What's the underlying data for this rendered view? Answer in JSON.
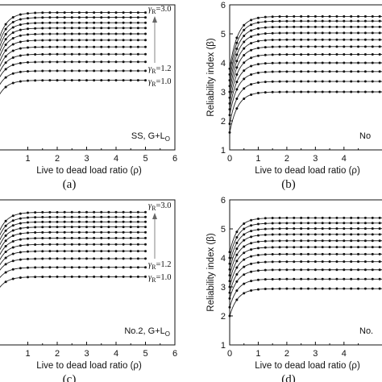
{
  "chart_data": [
    {
      "id": "a",
      "type": "line",
      "panel_label": "(a)",
      "xlabel": "Live to dead load ratio (ρ)",
      "ylabel": "",
      "xlim": [
        0,
        6
      ],
      "xticks": [
        "1",
        "2",
        "3",
        "4",
        "5",
        "6"
      ],
      "ylim": [
        0,
        6
      ],
      "yticks": [],
      "series_count": 11,
      "case_text": "SS, G+L",
      "case_subscript": "O",
      "annotations": {
        "top": {
          "text": "γ",
          "sub": "R",
          "value": "=3.0"
        },
        "mid": {
          "text": "γ",
          "sub": "R",
          "value": "=1.2"
        },
        "low": {
          "text": "γ",
          "sub": "R",
          "value": "=1.0"
        }
      },
      "series": [
        {
          "values": [
            4.5,
            5.62,
            5.67,
            5.68
          ]
        },
        {
          "values": [
            4.3,
            5.42,
            5.47,
            5.48
          ]
        },
        {
          "values": [
            4.1,
            5.2,
            5.25,
            5.26
          ]
        },
        {
          "values": [
            3.9,
            4.98,
            5.03,
            5.04
          ]
        },
        {
          "values": [
            3.7,
            4.74,
            4.79,
            4.8
          ]
        },
        {
          "values": [
            3.5,
            4.48,
            4.53,
            4.54
          ]
        },
        {
          "values": [
            3.3,
            4.2,
            4.25,
            4.26
          ]
        },
        {
          "values": [
            3.1,
            3.9,
            3.95,
            3.96
          ]
        },
        {
          "values": [
            2.9,
            3.58,
            3.63,
            3.64
          ]
        },
        {
          "values": [
            2.6,
            3.2,
            3.26,
            3.27
          ]
        },
        {
          "values": [
            2.2,
            2.8,
            2.87,
            2.88
          ]
        }
      ]
    },
    {
      "id": "b",
      "type": "line",
      "panel_label": "(b)",
      "xlabel": "Live to dead load ratio (ρ)",
      "ylabel": "Reliability index (β)",
      "xlim": [
        0,
        5.5
      ],
      "xticks": [
        "0",
        "1",
        "2",
        "3",
        "4"
      ],
      "ylim": [
        1,
        6
      ],
      "yticks": [
        "1",
        "2",
        "3",
        "4",
        "5",
        "6"
      ],
      "case_text": "No",
      "series": [
        {
          "values": [
            3.8,
            5.5,
            5.58,
            5.6
          ]
        },
        {
          "values": [
            3.6,
            5.35,
            5.42,
            5.44
          ]
        },
        {
          "values": [
            3.4,
            5.15,
            5.22,
            5.24
          ]
        },
        {
          "values": [
            3.2,
            4.95,
            5.01,
            5.03
          ]
        },
        {
          "values": [
            3.0,
            4.72,
            4.78,
            4.8
          ]
        },
        {
          "values": [
            2.8,
            4.48,
            4.54,
            4.56
          ]
        },
        {
          "values": [
            2.6,
            4.2,
            4.27,
            4.29
          ]
        },
        {
          "values": [
            2.4,
            3.92,
            3.98,
            4.0
          ]
        },
        {
          "values": [
            2.2,
            3.62,
            3.68,
            3.7
          ]
        },
        {
          "values": [
            1.9,
            3.28,
            3.34,
            3.36
          ]
        },
        {
          "values": [
            1.6,
            2.9,
            2.98,
            3.0
          ]
        }
      ]
    },
    {
      "id": "c",
      "type": "line",
      "panel_label": "(c)",
      "xlabel": "Live to dead load ratio (ρ)",
      "ylabel": "",
      "xlim": [
        0,
        6
      ],
      "xticks": [
        "1",
        "2",
        "3",
        "4",
        "5",
        "6"
      ],
      "ylim": [
        0,
        6
      ],
      "yticks": [],
      "case_text": "No.2, G+L",
      "case_subscript": "O",
      "annotations": {
        "top": {
          "text": "γ",
          "sub": "R",
          "value": "=3.0"
        },
        "mid": {
          "text": "γ",
          "sub": "R",
          "value": "=1.2"
        },
        "low": {
          "text": "γ",
          "sub": "R",
          "value": "=1.0"
        }
      },
      "series": [
        {
          "values": [
            4.6,
            5.45,
            5.48,
            5.49
          ]
        },
        {
          "values": [
            4.4,
            5.25,
            5.28,
            5.29
          ]
        },
        {
          "values": [
            4.2,
            5.05,
            5.08,
            5.09
          ]
        },
        {
          "values": [
            4.0,
            4.84,
            4.87,
            4.88
          ]
        },
        {
          "values": [
            3.8,
            4.62,
            4.65,
            4.66
          ]
        },
        {
          "values": [
            3.6,
            4.38,
            4.41,
            4.42
          ]
        },
        {
          "values": [
            3.4,
            4.12,
            4.15,
            4.16
          ]
        },
        {
          "values": [
            3.2,
            3.84,
            3.87,
            3.88
          ]
        },
        {
          "values": [
            3.0,
            3.52,
            3.56,
            3.57
          ]
        },
        {
          "values": [
            2.7,
            3.16,
            3.2,
            3.21
          ]
        },
        {
          "values": [
            2.3,
            2.76,
            2.81,
            2.82
          ]
        }
      ]
    },
    {
      "id": "d",
      "type": "line",
      "panel_label": "(d)",
      "xlabel": "Live to dead load ratio (ρ)",
      "ylabel": "Reliability index (β)",
      "xlim": [
        0,
        5.5
      ],
      "xticks": [
        "0",
        "1",
        "2",
        "3",
        "4"
      ],
      "ylim": [
        1,
        6
      ],
      "yticks": [
        "1",
        "2",
        "3",
        "4",
        "5",
        "6"
      ],
      "case_text": "No.",
      "series": [
        {
          "values": [
            4.2,
            5.3,
            5.36,
            5.38
          ]
        },
        {
          "values": [
            4.0,
            5.12,
            5.18,
            5.2
          ]
        },
        {
          "values": [
            3.8,
            4.94,
            4.99,
            5.01
          ]
        },
        {
          "values": [
            3.6,
            4.74,
            4.79,
            4.81
          ]
        },
        {
          "values": [
            3.4,
            4.52,
            4.57,
            4.59
          ]
        },
        {
          "values": [
            3.2,
            4.3,
            4.35,
            4.37
          ]
        },
        {
          "values": [
            3.0,
            4.06,
            4.11,
            4.13
          ]
        },
        {
          "values": [
            2.8,
            3.8,
            3.85,
            3.87
          ]
        },
        {
          "values": [
            2.6,
            3.52,
            3.57,
            3.59
          ]
        },
        {
          "values": [
            2.3,
            3.2,
            3.25,
            3.27
          ]
        },
        {
          "values": [
            2.0,
            2.86,
            2.92,
            2.94
          ]
        }
      ]
    }
  ]
}
